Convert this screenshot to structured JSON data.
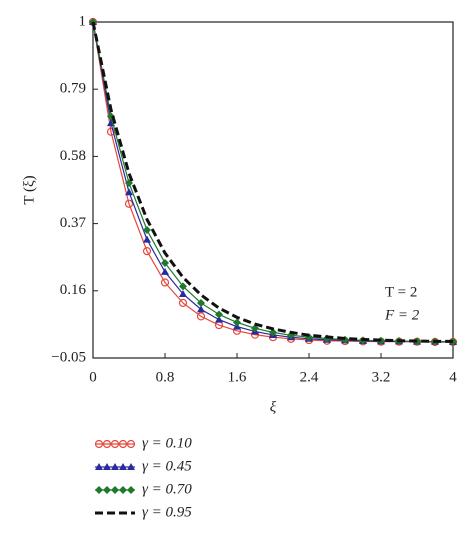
{
  "chart_data": {
    "type": "line",
    "y_label": "T (ξ)",
    "x_label": "ξ",
    "annotations": [
      "T = 2",
      "F = 2"
    ],
    "x": [
      0,
      0.2,
      0.4,
      0.6,
      0.8,
      1.0,
      1.2,
      1.4,
      1.6,
      1.8,
      2.0,
      2.2,
      2.4,
      2.6,
      2.8,
      3.0,
      3.2,
      3.4,
      3.6,
      3.8,
      4.0
    ],
    "series": [
      {
        "name": "γ = 0.10",
        "color": "#e8483c",
        "marker": "circle",
        "dashed": false,
        "values": [
          1,
          0.657,
          0.432,
          0.284,
          0.186,
          0.122,
          0.08,
          0.053,
          0.035,
          0.023,
          0.015,
          0.01,
          0.006,
          0.004,
          0.003,
          0.002,
          0.001,
          0.001,
          0.001,
          0,
          0
        ]
      },
      {
        "name": "γ = 0.45",
        "color": "#2a2aa0",
        "marker": "triangle",
        "dashed": false,
        "values": [
          1,
          0.684,
          0.468,
          0.32,
          0.219,
          0.15,
          0.102,
          0.07,
          0.048,
          0.033,
          0.022,
          0.015,
          0.01,
          0.007,
          0.005,
          0.003,
          0.002,
          0.002,
          0.001,
          0.001,
          0
        ]
      },
      {
        "name": "γ = 0.70",
        "color": "#1e7a2a",
        "marker": "diamond",
        "dashed": false,
        "values": [
          1,
          0.705,
          0.497,
          0.35,
          0.247,
          0.174,
          0.122,
          0.086,
          0.061,
          0.043,
          0.03,
          0.021,
          0.015,
          0.011,
          0.007,
          0.005,
          0.004,
          0.003,
          0.002,
          0.001,
          0.001
        ]
      },
      {
        "name": "γ = 0.95",
        "color": "#111111",
        "marker": "none",
        "dashed": true,
        "values": [
          1,
          0.726,
          0.527,
          0.383,
          0.278,
          0.202,
          0.147,
          0.106,
          0.077,
          0.056,
          0.041,
          0.03,
          0.021,
          0.016,
          0.011,
          0.008,
          0.006,
          0.004,
          0.003,
          0.002,
          0.002
        ]
      }
    ],
    "xlim": [
      0,
      4
    ],
    "xticks": [
      0,
      0.8,
      1.6,
      2.4,
      3.2,
      4
    ],
    "ylim": [
      -0.05,
      1
    ],
    "yticks": [
      {
        "value": -0.05,
        "label": "−0.05"
      },
      0.16,
      0.37,
      0.58,
      0.79,
      1
    ],
    "legend": "bottom"
  }
}
